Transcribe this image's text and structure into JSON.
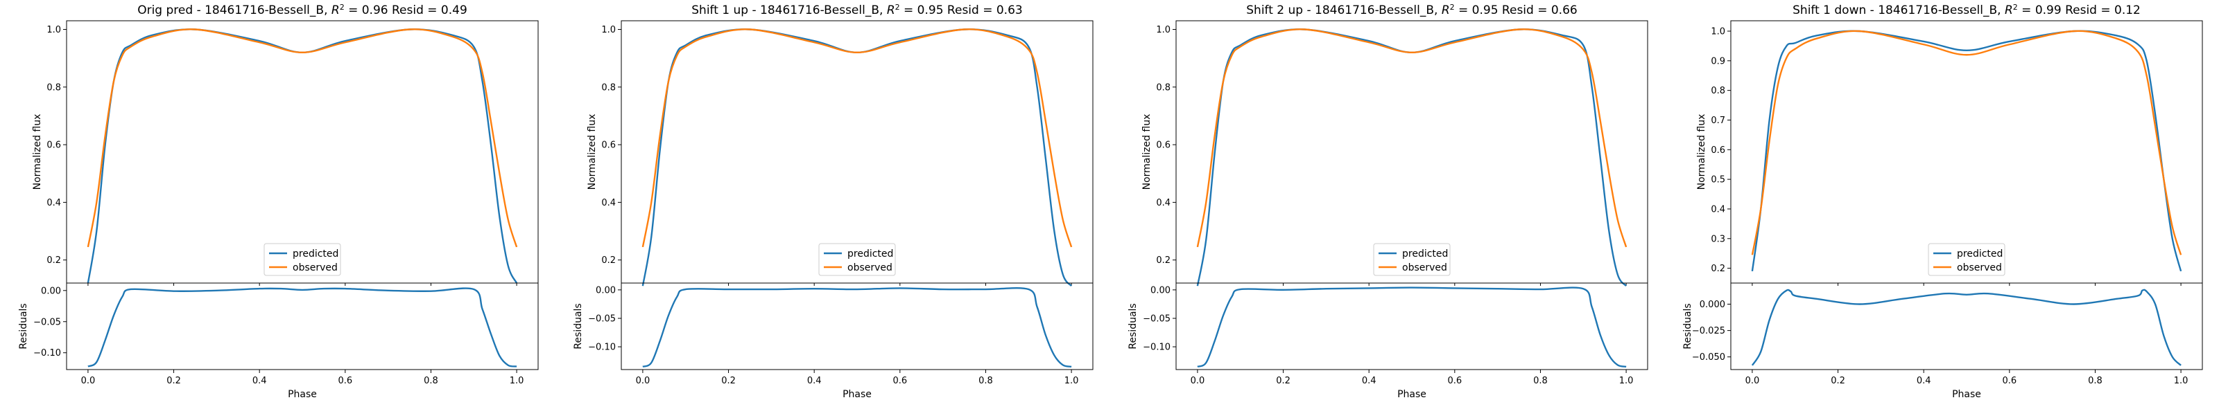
{
  "figure": {
    "colors": {
      "predicted": "#1f77b4",
      "observed": "#ff7f0e",
      "axes": "#000000",
      "legend_border": "#cccccc"
    }
  },
  "chart_data": [
    {
      "type": "line",
      "title": "Orig pred - 18461716-Bessell_B, $R^2 = 0.96$ Resid = 0.49",
      "title_prefix": "Orig pred - 18461716-Bessell_B,",
      "r2_label": "R",
      "r2_exp": "2",
      "r2_rest": " = 0.96 Resid = 0.49",
      "ylabel": "Normalized flux",
      "xlabel": "Phase",
      "xticks": [
        "0.0",
        "0.2",
        "0.4",
        "0.6",
        "0.8",
        "1.0"
      ],
      "xlim": [
        -0.05,
        1.05
      ],
      "legend": [
        "predicted",
        "observed"
      ],
      "top": {
        "ylim": [
          0.12,
          1.03
        ],
        "yticks": [
          "0.2",
          "0.4",
          "0.6",
          "0.8",
          "1.0"
        ],
        "series": [
          {
            "name": "predicted",
            "x": [
              0,
              0.02,
              0.04,
              0.06,
              0.08,
              0.1,
              0.15,
              0.25,
              0.4,
              0.5,
              0.6,
              0.75,
              0.85,
              0.9,
              0.92,
              0.94,
              0.96,
              0.98,
              1.0
            ],
            "values": [
              0.12,
              0.3,
              0.6,
              0.82,
              0.92,
              0.945,
              0.98,
              1.0,
              0.96,
              0.92,
              0.96,
              1.0,
              0.98,
              0.94,
              0.82,
              0.6,
              0.35,
              0.18,
              0.12
            ]
          },
          {
            "name": "observed",
            "x": [
              0,
              0.02,
              0.04,
              0.06,
              0.08,
              0.1,
              0.15,
              0.25,
              0.4,
              0.5,
              0.6,
              0.75,
              0.85,
              0.9,
              0.92,
              0.94,
              0.96,
              0.98,
              1.0
            ],
            "values": [
              0.245,
              0.4,
              0.63,
              0.82,
              0.91,
              0.94,
              0.975,
              1.0,
              0.955,
              0.92,
              0.955,
              1.0,
              0.975,
              0.93,
              0.85,
              0.68,
              0.5,
              0.34,
              0.245
            ]
          }
        ]
      },
      "bottom": {
        "ylim": [
          -0.127,
          0.012
        ],
        "yticks": [
          "0.00",
          "-0.05",
          "-0.10"
        ],
        "ytick_values": [
          0.0,
          -0.05,
          -0.1
        ],
        "series": [
          {
            "name": "residual",
            "x": [
              0,
              0.02,
              0.04,
              0.06,
              0.08,
              0.1,
              0.2,
              0.3,
              0.4,
              0.45,
              0.5,
              0.55,
              0.6,
              0.7,
              0.8,
              0.9,
              0.92,
              0.94,
              0.96,
              0.98,
              1.0
            ],
            "values": [
              -0.122,
              -0.115,
              -0.08,
              -0.04,
              -0.01,
              0.002,
              -0.001,
              0.0,
              0.003,
              0.003,
              0.001,
              0.003,
              0.003,
              0.0,
              -0.001,
              0.002,
              -0.03,
              -0.07,
              -0.105,
              -0.12,
              -0.122
            ]
          }
        ]
      }
    },
    {
      "type": "line",
      "title": "Shift 1 up - 18461716-Bessell_B, $R^2 = 0.95$ Resid = 0.63",
      "title_prefix": "Shift 1 up - 18461716-Bessell_B,",
      "r2_label": "R",
      "r2_exp": "2",
      "r2_rest": " = 0.95 Resid = 0.63",
      "ylabel": "Normalized flux",
      "xlabel": "Phase",
      "xticks": [
        "0.0",
        "0.2",
        "0.4",
        "0.6",
        "0.8",
        "1.0"
      ],
      "xlim": [
        -0.05,
        1.05
      ],
      "legend": [
        "predicted",
        "observed"
      ],
      "top": {
        "ylim": [
          0.12,
          1.03
        ],
        "yticks": [
          "0.2",
          "0.4",
          "0.6",
          "0.8",
          "1.0"
        ],
        "series": [
          {
            "name": "predicted",
            "x": [
              0,
              0.02,
              0.04,
              0.06,
              0.08,
              0.1,
              0.15,
              0.25,
              0.4,
              0.5,
              0.6,
              0.75,
              0.85,
              0.9,
              0.92,
              0.94,
              0.96,
              0.98,
              1.0
            ],
            "values": [
              0.11,
              0.28,
              0.58,
              0.82,
              0.92,
              0.945,
              0.98,
              1.0,
              0.96,
              0.92,
              0.96,
              1.0,
              0.98,
              0.94,
              0.8,
              0.55,
              0.3,
              0.15,
              0.11
            ]
          },
          {
            "name": "observed",
            "x": [
              0,
              0.02,
              0.04,
              0.06,
              0.08,
              0.1,
              0.15,
              0.25,
              0.4,
              0.5,
              0.6,
              0.75,
              0.85,
              0.9,
              0.92,
              0.94,
              0.96,
              0.98,
              1.0
            ],
            "values": [
              0.245,
              0.4,
              0.63,
              0.82,
              0.91,
              0.94,
              0.975,
              1.0,
              0.955,
              0.92,
              0.955,
              1.0,
              0.975,
              0.93,
              0.85,
              0.68,
              0.5,
              0.34,
              0.245
            ]
          }
        ]
      },
      "bottom": {
        "ylim": [
          -0.14,
          0.012
        ],
        "yticks": [
          "0.00",
          "-0.05",
          "-0.10"
        ],
        "ytick_values": [
          0.0,
          -0.05,
          -0.1
        ],
        "series": [
          {
            "name": "residual",
            "x": [
              0,
              0.02,
              0.04,
              0.06,
              0.08,
              0.1,
              0.2,
              0.3,
              0.4,
              0.5,
              0.6,
              0.7,
              0.8,
              0.9,
              0.92,
              0.94,
              0.96,
              0.98,
              1.0
            ],
            "values": [
              -0.135,
              -0.128,
              -0.09,
              -0.045,
              -0.012,
              0.001,
              0.001,
              0.001,
              0.002,
              0.001,
              0.003,
              0.001,
              0.001,
              0.001,
              -0.03,
              -0.08,
              -0.115,
              -0.132,
              -0.135
            ]
          }
        ]
      }
    },
    {
      "type": "line",
      "title": "Shift 2 up - 18461716-Bessell_B, $R^2 = 0.95$ Resid = 0.66",
      "title_prefix": "Shift 2 up - 18461716-Bessell_B,",
      "r2_label": "R",
      "r2_exp": "2",
      "r2_rest": " = 0.95 Resid = 0.66",
      "ylabel": "Normalized flux",
      "xlabel": "Phase",
      "xticks": [
        "0.0",
        "0.2",
        "0.4",
        "0.6",
        "0.8",
        "1.0"
      ],
      "xlim": [
        -0.05,
        1.05
      ],
      "legend": [
        "predicted",
        "observed"
      ],
      "top": {
        "ylim": [
          0.12,
          1.03
        ],
        "yticks": [
          "0.2",
          "0.4",
          "0.6",
          "0.8",
          "1.0"
        ],
        "series": [
          {
            "name": "predicted",
            "x": [
              0,
              0.02,
              0.04,
              0.06,
              0.08,
              0.1,
              0.15,
              0.25,
              0.4,
              0.5,
              0.6,
              0.75,
              0.85,
              0.9,
              0.92,
              0.94,
              0.96,
              0.98,
              1.0
            ],
            "values": [
              0.11,
              0.27,
              0.57,
              0.82,
              0.92,
              0.945,
              0.98,
              1.0,
              0.96,
              0.92,
              0.96,
              1.0,
              0.98,
              0.945,
              0.8,
              0.55,
              0.3,
              0.15,
              0.11
            ]
          },
          {
            "name": "observed",
            "x": [
              0,
              0.02,
              0.04,
              0.06,
              0.08,
              0.1,
              0.15,
              0.25,
              0.4,
              0.5,
              0.6,
              0.75,
              0.85,
              0.9,
              0.92,
              0.94,
              0.96,
              0.98,
              1.0
            ],
            "values": [
              0.245,
              0.4,
              0.63,
              0.82,
              0.91,
              0.94,
              0.975,
              1.0,
              0.955,
              0.92,
              0.955,
              1.0,
              0.975,
              0.93,
              0.85,
              0.68,
              0.5,
              0.34,
              0.245
            ]
          }
        ]
      },
      "bottom": {
        "ylim": [
          -0.14,
          0.012
        ],
        "yticks": [
          "0.00",
          "-0.05",
          "-0.10"
        ],
        "ytick_values": [
          0.0,
          -0.05,
          -0.1
        ],
        "series": [
          {
            "name": "residual",
            "x": [
              0,
              0.02,
              0.04,
              0.06,
              0.08,
              0.1,
              0.2,
              0.3,
              0.4,
              0.5,
              0.6,
              0.7,
              0.8,
              0.9,
              0.92,
              0.94,
              0.96,
              0.98,
              1.0
            ],
            "values": [
              -0.135,
              -0.128,
              -0.09,
              -0.045,
              -0.012,
              0.001,
              0.0,
              0.002,
              0.003,
              0.004,
              0.003,
              0.002,
              0.001,
              0.002,
              -0.03,
              -0.08,
              -0.115,
              -0.132,
              -0.135
            ]
          }
        ]
      }
    },
    {
      "type": "line",
      "title": "Shift 1 down - 18461716-Bessell_B, $R^2 = 0.99$ Resid = 0.12",
      "title_prefix": "Shift 1 down - 18461716-Bessell_B,",
      "r2_label": "R",
      "r2_exp": "2",
      "r2_rest": " = 0.99 Resid = 0.12",
      "ylabel": "Normalized flux",
      "xlabel": "Phase",
      "xticks": [
        "0.0",
        "0.2",
        "0.4",
        "0.6",
        "0.8",
        "1.0"
      ],
      "xlim": [
        -0.05,
        1.05
      ],
      "legend": [
        "predicted",
        "observed"
      ],
      "top": {
        "ylim": [
          0.15,
          1.035
        ],
        "yticks": [
          "0.2",
          "0.3",
          "0.4",
          "0.5",
          "0.6",
          "0.7",
          "0.8",
          "0.9",
          "1.0"
        ],
        "series": [
          {
            "name": "predicted",
            "x": [
              0,
              0.02,
              0.04,
              0.06,
              0.08,
              0.1,
              0.15,
              0.25,
              0.4,
              0.5,
              0.6,
              0.75,
              0.85,
              0.9,
              0.92,
              0.94,
              0.96,
              0.98,
              1.0
            ],
            "values": [
              0.19,
              0.4,
              0.7,
              0.88,
              0.95,
              0.96,
              0.985,
              1.0,
              0.965,
              0.935,
              0.965,
              1.0,
              0.985,
              0.955,
              0.9,
              0.72,
              0.5,
              0.3,
              0.19
            ]
          },
          {
            "name": "observed",
            "x": [
              0,
              0.02,
              0.04,
              0.06,
              0.08,
              0.1,
              0.15,
              0.25,
              0.4,
              0.5,
              0.6,
              0.75,
              0.85,
              0.9,
              0.92,
              0.94,
              0.96,
              0.98,
              1.0
            ],
            "values": [
              0.245,
              0.4,
              0.63,
              0.82,
              0.91,
              0.94,
              0.975,
              1.0,
              0.955,
              0.92,
              0.955,
              1.0,
              0.975,
              0.93,
              0.85,
              0.68,
              0.5,
              0.34,
              0.245
            ]
          }
        ]
      },
      "bottom": {
        "ylim": [
          -0.062,
          0.02
        ],
        "yticks": [
          "0.000",
          "-0.025",
          "-0.050"
        ],
        "ytick_values": [
          0.0,
          -0.025,
          -0.05
        ],
        "series": [
          {
            "name": "residual",
            "x": [
              0,
              0.02,
              0.04,
              0.06,
              0.08,
              0.09,
              0.1,
              0.15,
              0.25,
              0.35,
              0.45,
              0.5,
              0.55,
              0.65,
              0.75,
              0.85,
              0.9,
              0.91,
              0.92,
              0.94,
              0.96,
              0.98,
              1.0
            ],
            "values": [
              -0.058,
              -0.045,
              -0.015,
              0.005,
              0.013,
              0.012,
              0.008,
              0.005,
              0.0,
              0.005,
              0.01,
              0.009,
              0.01,
              0.005,
              0.0,
              0.005,
              0.008,
              0.013,
              0.012,
              0.0,
              -0.03,
              -0.05,
              -0.058
            ]
          }
        ]
      }
    }
  ]
}
